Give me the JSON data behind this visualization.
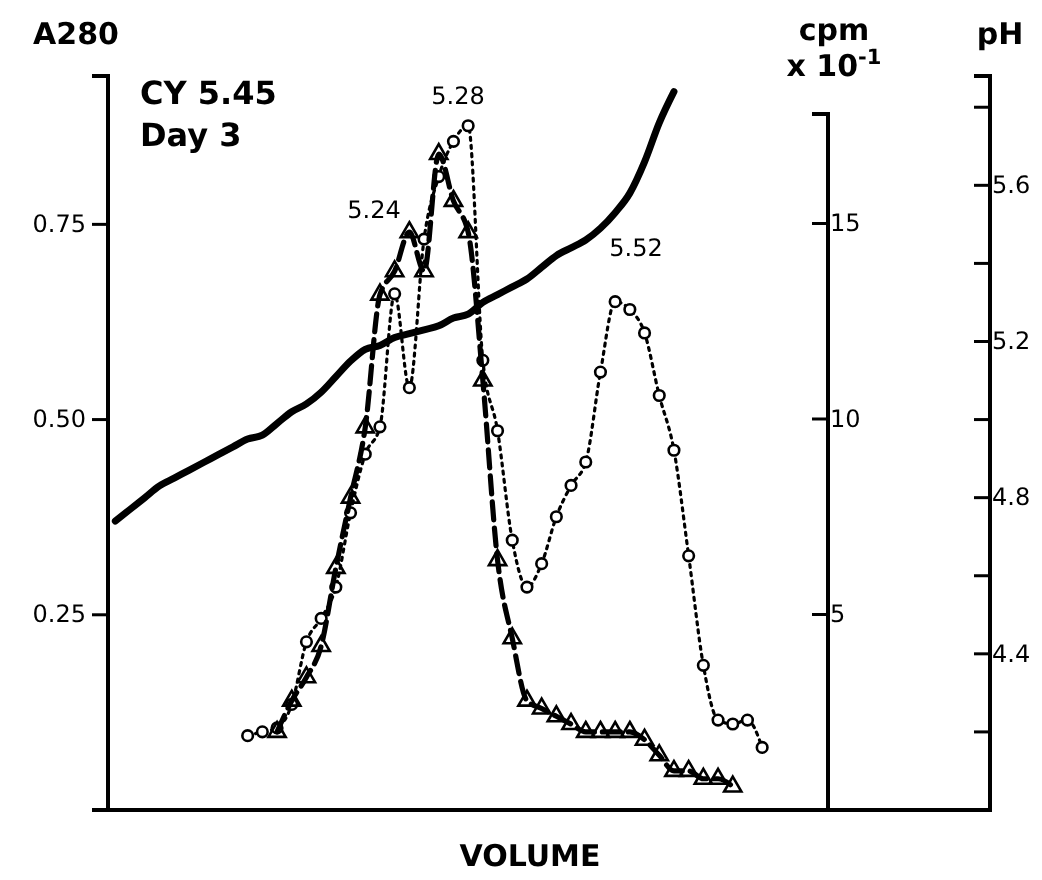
{
  "chart_data": {
    "type": "line",
    "xlabel": "VOLUME",
    "ylabel": "A280",
    "y2label": "cpm x 10$^{-1}$",
    "y3label": "pH",
    "annotations": [
      "CY 5.45",
      "Day 3",
      "5.24",
      "5.28",
      "5.52"
    ],
    "categories": [
      null,
      null,
      null,
      null,
      null,
      null,
      null,
      null,
      null,
      null,
      null,
      null,
      null,
      null,
      null,
      null,
      null,
      null,
      null,
      null,
      null,
      null,
      null,
      null,
      null,
      null,
      null,
      null,
      null,
      null,
      null,
      null,
      null,
      null,
      null,
      null,
      null,
      null,
      null,
      null,
      null,
      null,
      null,
      null,
      null,
      null,
      null,
      null,
      null,
      null,
      null,
      null,
      null,
      null,
      null,
      null,
      null,
      null,
      null,
      null
    ],
    "ylim": [
      0,
      0.94
    ],
    "yticks": [
      {
        "value": 0.25,
        "label": "0.25"
      },
      {
        "value": 0.5,
        "label": "0.50"
      },
      {
        "value": 0.75,
        "label": "0.75"
      }
    ],
    "y2lim": [
      0,
      17.8
    ],
    "y2ticks": [
      5,
      10,
      15
    ],
    "y3lim": [
      4.0,
      5.88
    ],
    "y3ticks": [
      {
        "value": 4.2,
        "label": null
      },
      4.4,
      {
        "value": 4.6,
        "label": null
      },
      4.8,
      {
        "value": 5.0,
        "label": null
      },
      5.2,
      {
        "value": 5.4,
        "label": null
      },
      5.6,
      {
        "value": 5.8,
        "label": null
      }
    ],
    "series": [
      {
        "color": "#000000",
        "axis": "y",
        "marker": "triangle",
        "line_style": "dashed",
        "values": [
          null,
          null,
          null,
          null,
          null,
          null,
          null,
          null,
          null,
          null,
          null,
          0.1,
          0.14,
          0.17,
          0.21,
          0.31,
          0.4,
          0.49,
          0.66,
          0.69,
          0.74,
          0.69,
          0.84,
          0.78,
          0.74,
          0.55,
          0.32,
          0.22,
          0.14,
          0.13,
          0.12,
          0.11,
          0.1,
          0.1,
          0.1,
          0.1,
          0.09,
          0.07,
          0.05,
          0.05,
          0.04,
          0.04,
          0.03,
          null,
          null,
          null,
          null,
          null,
          null,
          null,
          null,
          null,
          null,
          null,
          null,
          null,
          null,
          null,
          null,
          null
        ]
      },
      {
        "color": "#000000",
        "axis": "y2",
        "marker": "circle",
        "line_style": "dotted",
        "values": [
          null,
          null,
          null,
          null,
          null,
          null,
          null,
          null,
          null,
          1.9,
          2.0,
          2.1,
          2.7,
          4.3,
          4.9,
          5.7,
          7.6,
          9.1,
          9.8,
          13.2,
          10.8,
          14.6,
          16.2,
          17.1,
          17.5,
          11.5,
          9.7,
          6.9,
          5.7,
          6.3,
          7.5,
          8.3,
          8.9,
          11.2,
          13.0,
          12.8,
          12.2,
          10.6,
          9.2,
          6.5,
          3.7,
          2.3,
          2.2,
          2.3,
          1.6,
          null,
          null,
          null,
          null,
          null,
          null,
          null,
          null,
          null,
          null,
          null,
          null,
          null,
          null,
          null
        ]
      },
      {
        "color": "#000000",
        "axis": "y3",
        "marker": "none",
        "line_style": "solid",
        "values": [
          4.74,
          4.77,
          4.8,
          4.83,
          4.85,
          4.87,
          4.89,
          4.91,
          4.93,
          4.95,
          4.96,
          4.99,
          5.02,
          5.04,
          5.07,
          5.11,
          5.15,
          5.18,
          5.19,
          5.21,
          5.22,
          5.23,
          5.24,
          5.26,
          5.27,
          5.3,
          5.32,
          5.34,
          5.36,
          5.39,
          5.42,
          5.44,
          5.46,
          5.49,
          5.53,
          5.58,
          5.66,
          5.76,
          5.84,
          null,
          null,
          null,
          null,
          null,
          null,
          null,
          null,
          null,
          null,
          null,
          null,
          null,
          null,
          null,
          null,
          null,
          null,
          null,
          null,
          null
        ]
      }
    ]
  }
}
